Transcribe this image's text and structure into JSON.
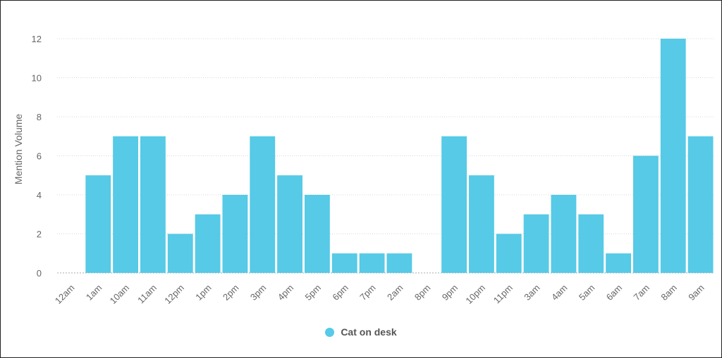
{
  "chart_data": {
    "type": "bar",
    "title": "",
    "xlabel": "",
    "ylabel": "Mention Volume",
    "categories": [
      "12am",
      "1am",
      "10am",
      "11am",
      "12pm",
      "1pm",
      "2pm",
      "3pm",
      "4pm",
      "5pm",
      "6pm",
      "7pm",
      "2am",
      "8pm",
      "9pm",
      "10pm",
      "11pm",
      "3am",
      "4am",
      "5am",
      "6am",
      "7am",
      "8am",
      "9am"
    ],
    "series": [
      {
        "name": "Cat on desk",
        "color": "#56cae6",
        "values": [
          0,
          5,
          7,
          7,
          2,
          3,
          4,
          7,
          5,
          4,
          1,
          1,
          1,
          0,
          7,
          5,
          2,
          3,
          4,
          3,
          1,
          6,
          12,
          7
        ]
      }
    ],
    "ylim": [
      0,
      12
    ],
    "yticks": [
      0,
      2,
      4,
      6,
      8,
      10,
      12
    ],
    "grid": true,
    "legend": "bottom-center"
  }
}
